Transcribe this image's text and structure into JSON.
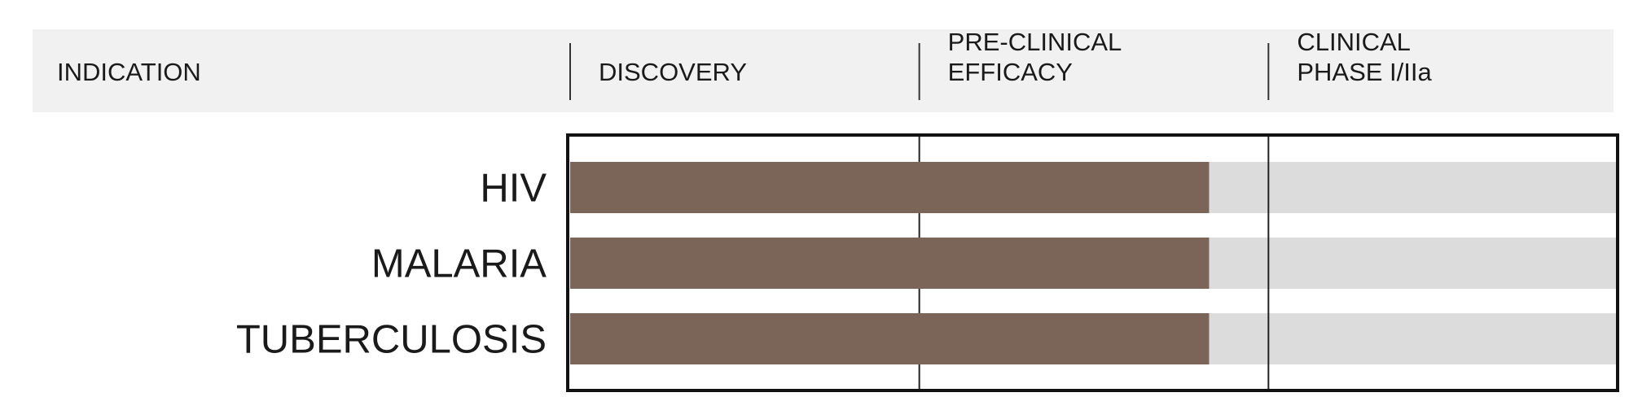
{
  "chart_data": {
    "type": "bar",
    "orientation": "horizontal",
    "category_header": "INDICATION",
    "categories": [
      "HIV",
      "MALARIA",
      "TUBERCULOSIS"
    ],
    "values": [
      1.83,
      1.83,
      1.83
    ],
    "color": "#7b6558",
    "track_color": "#dcdcdc",
    "xlim": [
      0,
      3
    ],
    "xticks": [
      {
        "value": 0,
        "label": "DISCOVERY"
      },
      {
        "value": 1,
        "label": "PRE-CLINICAL\nEFFICACY"
      },
      {
        "value": 2,
        "label": "CLINICAL\nPHASE I/IIa"
      }
    ],
    "grid": true
  }
}
